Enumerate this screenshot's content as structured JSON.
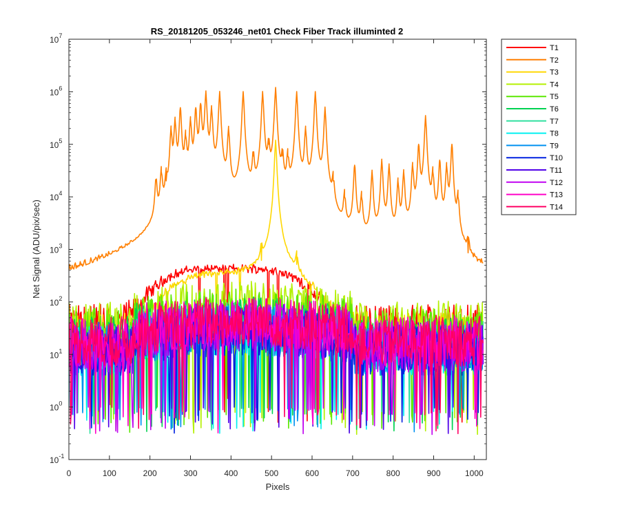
{
  "chart_data": {
    "type": "line",
    "title": "RS_20181205_053246_net01    Check Fiber     Track illuminted 2",
    "xlabel": "Pixels",
    "ylabel": "Net Signal (ADU/pix/sec)",
    "xlim": [
      0,
      1030
    ],
    "ylim_log10": [
      -1,
      7
    ],
    "yscale": "log",
    "x_ticks": [
      {
        "value": 0,
        "label": "0"
      },
      {
        "value": 100,
        "label": "100"
      },
      {
        "value": 200,
        "label": "200"
      },
      {
        "value": 300,
        "label": "300"
      },
      {
        "value": 400,
        "label": "400"
      },
      {
        "value": 500,
        "label": "500"
      },
      {
        "value": 600,
        "label": "600"
      },
      {
        "value": 700,
        "label": "700"
      },
      {
        "value": 800,
        "label": "800"
      },
      {
        "value": 900,
        "label": "900"
      },
      {
        "value": 1000,
        "label": "1000"
      }
    ],
    "y_ticks": [
      {
        "exp": -1,
        "base": "10",
        "sup": "-1"
      },
      {
        "exp": 0,
        "base": "10",
        "sup": "0"
      },
      {
        "exp": 1,
        "base": "10",
        "sup": "1"
      },
      {
        "exp": 2,
        "base": "10",
        "sup": "2"
      },
      {
        "exp": 3,
        "base": "10",
        "sup": "3"
      },
      {
        "exp": 4,
        "base": "10",
        "sup": "4"
      },
      {
        "exp": 5,
        "base": "10",
        "sup": "5"
      },
      {
        "exp": 6,
        "base": "10",
        "sup": "6"
      },
      {
        "exp": 7,
        "base": "10",
        "sup": "7"
      }
    ],
    "legend_position": "outside-top-right",
    "series": [
      {
        "name": "T1",
        "color": "#ff0000",
        "profile": "hump",
        "peak": 400,
        "baseline": 30,
        "center": 400,
        "width": 190
      },
      {
        "name": "T2",
        "color": "#ff7f00",
        "profile": "arc",
        "baseline": 60,
        "lines": [
          {
            "x": 215,
            "v": 20000
          },
          {
            "x": 228,
            "v": 30000
          },
          {
            "x": 240,
            "v": 20000
          },
          {
            "x": 252,
            "v": 200000
          },
          {
            "x": 262,
            "v": 300000
          },
          {
            "x": 275,
            "v": 500000
          },
          {
            "x": 288,
            "v": 150000
          },
          {
            "x": 300,
            "v": 300000
          },
          {
            "x": 313,
            "v": 500000
          },
          {
            "x": 325,
            "v": 600000
          },
          {
            "x": 338,
            "v": 1000000
          },
          {
            "x": 352,
            "v": 500000
          },
          {
            "x": 372,
            "v": 1000000
          },
          {
            "x": 394,
            "v": 200000
          },
          {
            "x": 430,
            "v": 1000000
          },
          {
            "x": 455,
            "v": 60000
          },
          {
            "x": 478,
            "v": 1000000
          },
          {
            "x": 493,
            "v": 100000
          },
          {
            "x": 510,
            "v": 1200000
          },
          {
            "x": 527,
            "v": 60000
          },
          {
            "x": 540,
            "v": 60000
          },
          {
            "x": 562,
            "v": 1000000
          },
          {
            "x": 584,
            "v": 200000
          },
          {
            "x": 608,
            "v": 1000000
          },
          {
            "x": 632,
            "v": 500000
          },
          {
            "x": 652,
            "v": 20000
          },
          {
            "x": 680,
            "v": 10000
          },
          {
            "x": 705,
            "v": 40000
          },
          {
            "x": 722,
            "v": 10000
          },
          {
            "x": 748,
            "v": 30000
          },
          {
            "x": 772,
            "v": 50000
          },
          {
            "x": 790,
            "v": 40000
          },
          {
            "x": 812,
            "v": 20000
          },
          {
            "x": 826,
            "v": 30000
          },
          {
            "x": 848,
            "v": 40000
          },
          {
            "x": 863,
            "v": 100000
          },
          {
            "x": 880,
            "v": 350000
          },
          {
            "x": 898,
            "v": 30000
          },
          {
            "x": 915,
            "v": 50000
          },
          {
            "x": 932,
            "v": 40000
          },
          {
            "x": 945,
            "v": 100000
          },
          {
            "x": 960,
            "v": 10000
          },
          {
            "x": 985,
            "v": 800
          }
        ]
      },
      {
        "name": "T3",
        "color": "#ffd700",
        "profile": "hump",
        "peak": 300,
        "baseline": 20,
        "center": 420,
        "width": 180,
        "lines": [
          {
            "x": 510,
            "v": 120000
          },
          {
            "x": 475,
            "v": 600
          },
          {
            "x": 562,
            "v": 500
          }
        ]
      },
      {
        "name": "T4",
        "color": "#b4f000",
        "profile": "noise",
        "baseline": 35
      },
      {
        "name": "T5",
        "color": "#5ae800",
        "profile": "noise",
        "baseline": 25
      },
      {
        "name": "T6",
        "color": "#00d250",
        "profile": "noise",
        "baseline": 18
      },
      {
        "name": "T7",
        "color": "#30e0a0",
        "profile": "noise",
        "baseline": 15
      },
      {
        "name": "T8",
        "color": "#00f0f0",
        "profile": "noise",
        "baseline": 12
      },
      {
        "name": "T9",
        "color": "#0090f0",
        "profile": "noise",
        "baseline": 12
      },
      {
        "name": "T10",
        "color": "#0020e0",
        "profile": "noise",
        "baseline": 12
      },
      {
        "name": "T11",
        "color": "#5000e8",
        "profile": "noise",
        "baseline": 14
      },
      {
        "name": "T12",
        "color": "#c000f0",
        "profile": "noise",
        "baseline": 14
      },
      {
        "name": "T13",
        "color": "#ff00c8",
        "profile": "noise",
        "baseline": 18
      },
      {
        "name": "T14",
        "color": "#ff0064",
        "profile": "noise",
        "baseline": 18
      }
    ]
  }
}
